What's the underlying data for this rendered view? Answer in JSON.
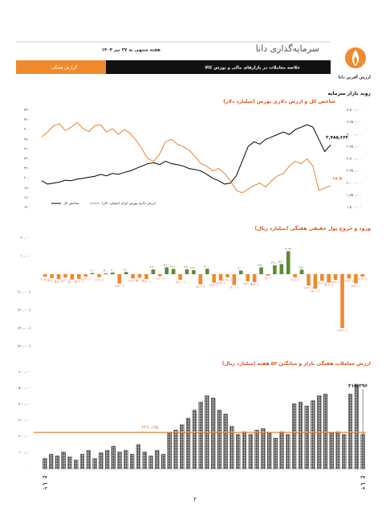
{
  "header": {
    "company": "سرمایه‌گذاری دانا",
    "date": "هفته منتهی به ۲۷ تیر ۱۴۰۴",
    "subtitle": "خلاصه معاملات در بازارهای مالی و بورس کالا",
    "report_type": "گزارش هفتگی",
    "logo_text": "ارزش آفرین دانا"
  },
  "section_title": "روند بازار سرمایه",
  "chart_data": [
    {
      "type": "line",
      "title": "شاخص کل و ارزش دلاری بورس (میلیارد دلار)",
      "legend": "bottom-left",
      "ylim": [
        14,
        34
      ],
      "yticks": [
        {
          "value": 14,
          "label": "۱۴.۰"
        },
        {
          "value": 16,
          "label": "۱۶.۰"
        },
        {
          "value": 18,
          "label": "۱۸.۰"
        },
        {
          "value": 20,
          "label": "۲۰.۰"
        },
        {
          "value": 22,
          "label": "۲۲.۰"
        },
        {
          "value": 24,
          "label": "۲۴.۰"
        },
        {
          "value": 26,
          "label": "۲۶.۰"
        },
        {
          "value": 28,
          "label": "۲۸.۰"
        },
        {
          "value": 30,
          "label": "۳۰.۰"
        },
        {
          "value": 32,
          "label": "۳۲.۰"
        },
        {
          "value": 34,
          "label": "۳۴.۰"
        }
      ],
      "y2lim": [
        1500000,
        3500000
      ],
      "y2ticks": [
        {
          "value": 1500000,
          "label": "۱,۵۰۰,۰۰۰"
        },
        {
          "value": 1750000,
          "label": "۱,۷۵۰,۰۰۰"
        },
        {
          "value": 2000000,
          "label": "۲,۰۰۰,۰۰۰"
        },
        {
          "value": 2250000,
          "label": "۲,۲۵۰,۰۰۰"
        },
        {
          "value": 2500000,
          "label": "۲,۵۰۰,۰۰۰"
        },
        {
          "value": 2750000,
          "label": "۲,۷۵۰,۰۰۰"
        },
        {
          "value": 3000000,
          "label": "۳,۰۰۰,۰۰۰"
        },
        {
          "value": 3250000,
          "label": "۳,۲۵۰,۰۰۰"
        },
        {
          "value": 3500000,
          "label": "۳,۵۰۰,۰۰۰"
        }
      ],
      "series": [
        {
          "name": "شاخص کل",
          "color": "#000000",
          "axis": "y2",
          "values": [
            2050000,
            1980000,
            2000000,
            2020000,
            2060000,
            2050000,
            2080000,
            2100000,
            2120000,
            2140000,
            2180000,
            2150000,
            2200000,
            2180000,
            2220000,
            2250000,
            2300000,
            2350000,
            2400000,
            2420000,
            2380000,
            2450000,
            2400000,
            2380000,
            2350000,
            2300000,
            2280000,
            2250000,
            2180000,
            2100000,
            2050000,
            1980000,
            2000000,
            2150000,
            2450000,
            2750000,
            2850000,
            2800000,
            2900000,
            2950000,
            3000000,
            3050000,
            3000000,
            3100000,
            3150000,
            3200000,
            3150000,
            2900000,
            2650000,
            2785664
          ],
          "value_labels": [
            null,
            null,
            null,
            null,
            null,
            null,
            null,
            null,
            null,
            null,
            null,
            null,
            null,
            null,
            null,
            null,
            null,
            null,
            null,
            null,
            null,
            null,
            null,
            null,
            null,
            null,
            null,
            null,
            null,
            null,
            null,
            null,
            null,
            null,
            null,
            null,
            null,
            null,
            null,
            null,
            null,
            null,
            null,
            null,
            null,
            null,
            null,
            null,
            null,
            "۲,۷۸۵,۶۶۴"
          ]
        },
        {
          "name": "ارزش دلاری بورس ایران (میلیارد دلار)",
          "color": "#e8822e",
          "values": [
            28.5,
            29.5,
            30.8,
            31.2,
            29.8,
            30.5,
            31.5,
            30.2,
            29.6,
            30.8,
            31.0,
            29.5,
            30.2,
            29.0,
            30.0,
            29.2,
            27.8,
            26.0,
            24.0,
            23.5,
            25.0,
            27.5,
            28.0,
            27.0,
            26.5,
            25.8,
            24.5,
            23.0,
            22.5,
            21.5,
            22.0,
            21.0,
            19.5,
            17.5,
            17.0,
            17.8,
            18.5,
            19.0,
            18.2,
            19.5,
            20.5,
            21.0,
            22.5,
            23.5,
            23.0,
            24.0,
            22.5,
            17.5,
            18.0,
            18.5
          ],
          "value_labels": [
            null,
            null,
            null,
            null,
            null,
            null,
            null,
            null,
            null,
            null,
            null,
            null,
            null,
            null,
            null,
            null,
            null,
            null,
            null,
            null,
            null,
            null,
            null,
            null,
            null,
            null,
            null,
            null,
            null,
            null,
            null,
            null,
            null,
            null,
            null,
            null,
            null,
            null,
            null,
            null,
            null,
            null,
            null,
            null,
            null,
            null,
            null,
            null,
            null,
            "۱۸.۵"
          ]
        }
      ]
    },
    {
      "type": "bar",
      "title": "ورود و خروج پول حقیقی هفتگی (میلیارد ریال)",
      "positive_color": "#5b8c33",
      "negative_color": "#f08a2c",
      "ylim": [
        -40000,
        20000
      ],
      "yticks": [
        {
          "value": 20000,
          "label": "۲۰,۰۰۰"
        },
        {
          "value": 10000,
          "label": "۱۰,۰۰۰"
        },
        {
          "value": -10000,
          "label": "(۱۰,۰۰۰)"
        },
        {
          "value": -20000,
          "label": "(۲۰,۰۰۰)"
        },
        {
          "value": -30000,
          "label": "(۳۰,۰۰۰)"
        },
        {
          "value": -40000,
          "label": "(۴۰,۰۰۰)"
        }
      ],
      "values": [
        -1500,
        -2200,
        -2800,
        -1900,
        -3000,
        -2600,
        -1400,
        600,
        -1700,
        400,
        900,
        -5200,
        1200,
        -2400,
        -2000,
        -2700,
        2600,
        -1200,
        3800,
        2900,
        -3100,
        2700,
        2200,
        -5600,
        3000,
        -4700,
        -3500,
        -1800,
        -6000,
        2000,
        -3900,
        -4400,
        3800,
        -800,
        4900,
        5600,
        12650,
        -1800,
        2500,
        -6300,
        -8000,
        -3600,
        -4600,
        -3200,
        -29800,
        -2400,
        -5100,
        -1400
      ],
      "value_labels": [
        "(۱,۵۰۰)",
        "(۲,۲۰۰)",
        "(۲,۸۰۰)",
        "(۱,۹۰۰)",
        "(۳,۰۰۰)",
        "(۲,۶۰۰)",
        "(۱,۴۰۰)",
        "۶۰۰",
        "(۱,۷۰۰)",
        "۴۰۰",
        "۹۰۰",
        "(۵,۲۰۰)",
        "۱,۲۰۰",
        "(۲,۴۰۰)",
        "(۲,۰۰۰)",
        "(۲,۷۰۰)",
        "۲,۶۰۰",
        "(۱,۲۰۰)",
        "۳,۸۰۰",
        "۲,۹۰۰",
        "(۳,۱۰۰)",
        "۲,۷۰۰",
        "۲,۲۰۰",
        "(۵,۶۰۰)",
        "۳,۰۰۰",
        "(۴,۷۰۰)",
        "(۳,۵۰۰)",
        "(۱,۸۰۰)",
        "(۶,۰۰۰)",
        "۲,۰۰۰",
        "(۳,۹۰۰)",
        "(۴,۴۰۰)",
        "۳,۸۰۰",
        "(۸۰۰)",
        "۴,۹۰۰",
        "۵,۶۰۰",
        "۱۲,۶۵۰",
        "(۱,۸۰۰)",
        "۲,۵۰۰",
        "(۶,۳۰۰)",
        "(۸,۰۰۰)",
        "(۳,۶۰۰)",
        "(۴,۶۰۰)",
        "(۳,۲۰۰)",
        "(۲۹,۸۰۰)",
        "(۲,۴۰۰)",
        "(۵,۱۰۰)",
        "(۱,۴۰۰)"
      ]
    },
    {
      "type": "bar",
      "title": "ارزش معاملات هفتگی بازار و میانگین ۵۲ هفته (میلیارد ریال)",
      "color": "#555555",
      "ylim": [
        0,
        600000
      ],
      "yticks": [
        {
          "value": 0,
          "label": "۰"
        },
        {
          "value": 100000,
          "label": "۱۰۰,۰۰۰"
        },
        {
          "value": 200000,
          "label": "۲۰۰,۰۰۰"
        },
        {
          "value": 300000,
          "label": "۳۰۰,۰۰۰"
        },
        {
          "value": 400000,
          "label": "۴۰۰,۰۰۰"
        },
        {
          "value": 500000,
          "label": "۵۰۰,۰۰۰"
        },
        {
          "value": 600000,
          "label": "۶۰۰,۰۰۰"
        }
      ],
      "categories": [
        "۲۷ تیر ۰۳",
        null,
        null,
        null,
        null,
        null,
        null,
        null,
        null,
        null,
        null,
        null,
        null,
        null,
        null,
        null,
        null,
        null,
        null,
        null,
        null,
        null,
        null,
        null,
        null,
        null,
        null,
        null,
        null,
        null,
        null,
        null,
        null,
        null,
        null,
        null,
        null,
        null,
        null,
        null,
        null,
        null,
        null,
        null,
        null,
        null,
        null,
        null,
        null,
        null,
        null,
        "۲۷ تیر ۰۴"
      ],
      "values": [
        65000,
        90000,
        80000,
        105000,
        75000,
        55000,
        90000,
        115000,
        65000,
        100000,
        115000,
        140000,
        105000,
        115000,
        90000,
        150000,
        105000,
        80000,
        115000,
        90000,
        225000,
        240000,
        275000,
        315000,
        365000,
        415000,
        455000,
        440000,
        365000,
        340000,
        265000,
        215000,
        230000,
        215000,
        240000,
        250000,
        225000,
        190000,
        230000,
        215000,
        405000,
        415000,
        390000,
        425000,
        455000,
        465000,
        225000,
        230000,
        215000,
        465000,
        525000,
        215296
      ],
      "value_labels": [
        null,
        null,
        null,
        null,
        null,
        null,
        null,
        null,
        null,
        null,
        null,
        null,
        null,
        null,
        null,
        null,
        null,
        null,
        null,
        null,
        null,
        null,
        null,
        null,
        null,
        null,
        null,
        null,
        null,
        null,
        null,
        null,
        null,
        null,
        null,
        null,
        null,
        null,
        null,
        null,
        null,
        null,
        null,
        null,
        null,
        null,
        null,
        null,
        null,
        null,
        null,
        "۲۱۵,۲۹۶"
      ],
      "reference_line": {
        "value": 226195,
        "label": "۲۲۶,۱۹۵",
        "color": "#e8822e"
      }
    }
  ],
  "footer": {
    "page_number": "۲"
  }
}
